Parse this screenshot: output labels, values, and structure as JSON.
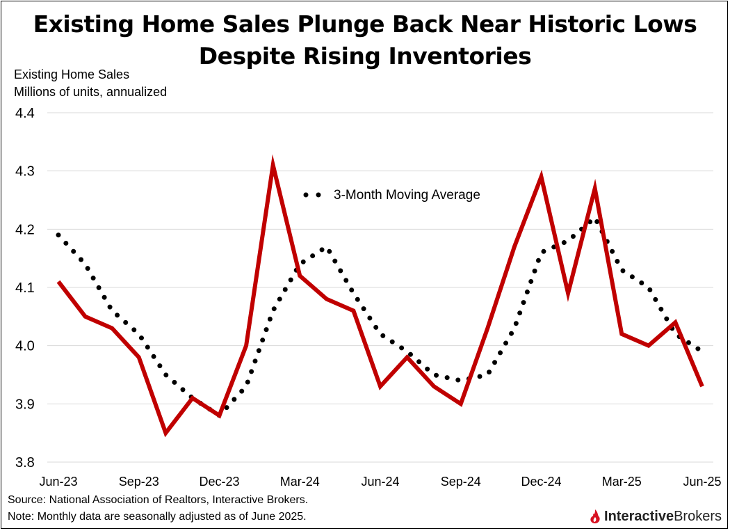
{
  "title_line1": "Existing Home Sales Plunge Back Near Historic Lows",
  "title_line2": "Despite Rising Inventories",
  "footer": {
    "source": "Source: National Association of Realtors, Interactive Brokers.",
    "note": "Note: Monthly data are seasonally adjusted as of June 2025."
  },
  "logo": {
    "part1": "Interactive",
    "part2": "Brokers"
  },
  "colors": {
    "actual": "#c00000",
    "moving_average": "#000000",
    "grid": "#d9d9d9"
  },
  "chart_data": {
    "type": "line",
    "ylabel_line1": "Existing Home Sales",
    "ylabel_line2": "Millions of units, annualized",
    "ylim": [
      3.8,
      4.4
    ],
    "yticks": [
      "3.8",
      "3.9",
      "4.0",
      "4.1",
      "4.2",
      "4.3",
      "4.4"
    ],
    "x": [
      "Jun-23",
      "Jul-23",
      "Aug-23",
      "Sep-23",
      "Oct-23",
      "Nov-23",
      "Dec-23",
      "Jan-24",
      "Feb-24",
      "Mar-24",
      "Apr-24",
      "May-24",
      "Jun-24",
      "Jul-24",
      "Aug-24",
      "Sep-24",
      "Oct-24",
      "Nov-24",
      "Dec-24",
      "Jan-25",
      "Feb-25",
      "Mar-25",
      "Apr-25",
      "May-25",
      "Jun-25"
    ],
    "xtick_labels": [
      "Jun-23",
      "Sep-23",
      "Dec-23",
      "Mar-24",
      "Jun-24",
      "Sep-24",
      "Dec-24",
      "Mar-25",
      "Jun-25"
    ],
    "grid": true,
    "legend_position": "top-center",
    "series": [
      {
        "values": [
          4.11,
          4.05,
          4.03,
          3.98,
          3.85,
          3.91,
          3.88,
          4.0,
          4.31,
          4.12,
          4.08,
          4.06,
          3.93,
          3.98,
          3.93,
          3.9,
          4.03,
          4.17,
          4.29,
          4.09,
          4.27,
          4.02,
          4.0,
          4.04,
          3.93
        ]
      },
      {
        "name": "3-Month Moving Average",
        "values": [
          4.19,
          4.14,
          4.06,
          4.02,
          3.95,
          3.91,
          3.88,
          3.93,
          4.06,
          4.14,
          4.17,
          4.09,
          4.02,
          3.99,
          3.95,
          3.94,
          3.95,
          4.03,
          4.16,
          4.18,
          4.22,
          4.13,
          4.1,
          4.02,
          3.99
        ]
      }
    ]
  }
}
